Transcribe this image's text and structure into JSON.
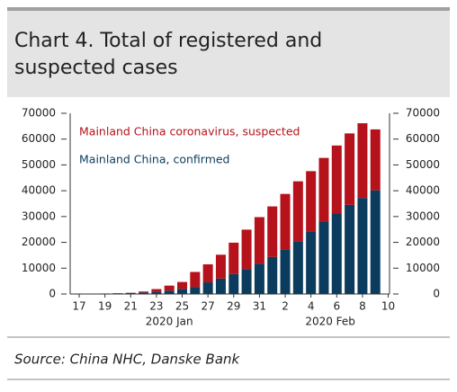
{
  "chart_data": {
    "type": "stacked-bar",
    "title": "Chart 4. Total of registered and suspected cases",
    "source": "Source:  China NHC, Danske Bank",
    "categories": [
      "17",
      null,
      "19",
      null,
      "21",
      null,
      "23",
      null,
      "25",
      null,
      "27",
      null,
      "29",
      null,
      "31",
      null,
      "2",
      null,
      "4",
      null,
      "6",
      null,
      "8",
      null,
      "10"
    ],
    "x_groups": [
      {
        "label": "2020 Jan",
        "start": 0,
        "end": 14
      },
      {
        "label": "2020 Feb",
        "start": 15,
        "end": 24
      }
    ],
    "series": [
      {
        "name": "Mainland China, confirmed",
        "color": "#0b3c5d",
        "values": [
          62,
          121,
          198,
          291,
          440,
          571,
          830,
          1287,
          1975,
          2744,
          4515,
          5974,
          7711,
          9692,
          11791,
          14380,
          17205,
          20438,
          24324,
          28018,
          31161,
          34546,
          37198,
          40171,
          null
        ]
      },
      {
        "name": "Mainland China coronavirus, suspected",
        "color": "#b5121b",
        "values": [
          0,
          0,
          0,
          0,
          37,
          393,
          1072,
          1965,
          2684,
          5794,
          6973,
          9239,
          12167,
          15238,
          17988,
          19544,
          21558,
          23214,
          23260,
          24702,
          26359,
          27657,
          28942,
          23589,
          null
        ]
      }
    ],
    "ylim": [
      0,
      70000
    ],
    "yticks": [
      0,
      10000,
      20000,
      30000,
      40000,
      50000,
      60000,
      70000
    ],
    "y2lim": [
      0,
      70000
    ],
    "y2ticks": [
      0,
      10000,
      20000,
      30000,
      40000,
      50000,
      60000,
      70000
    ]
  }
}
